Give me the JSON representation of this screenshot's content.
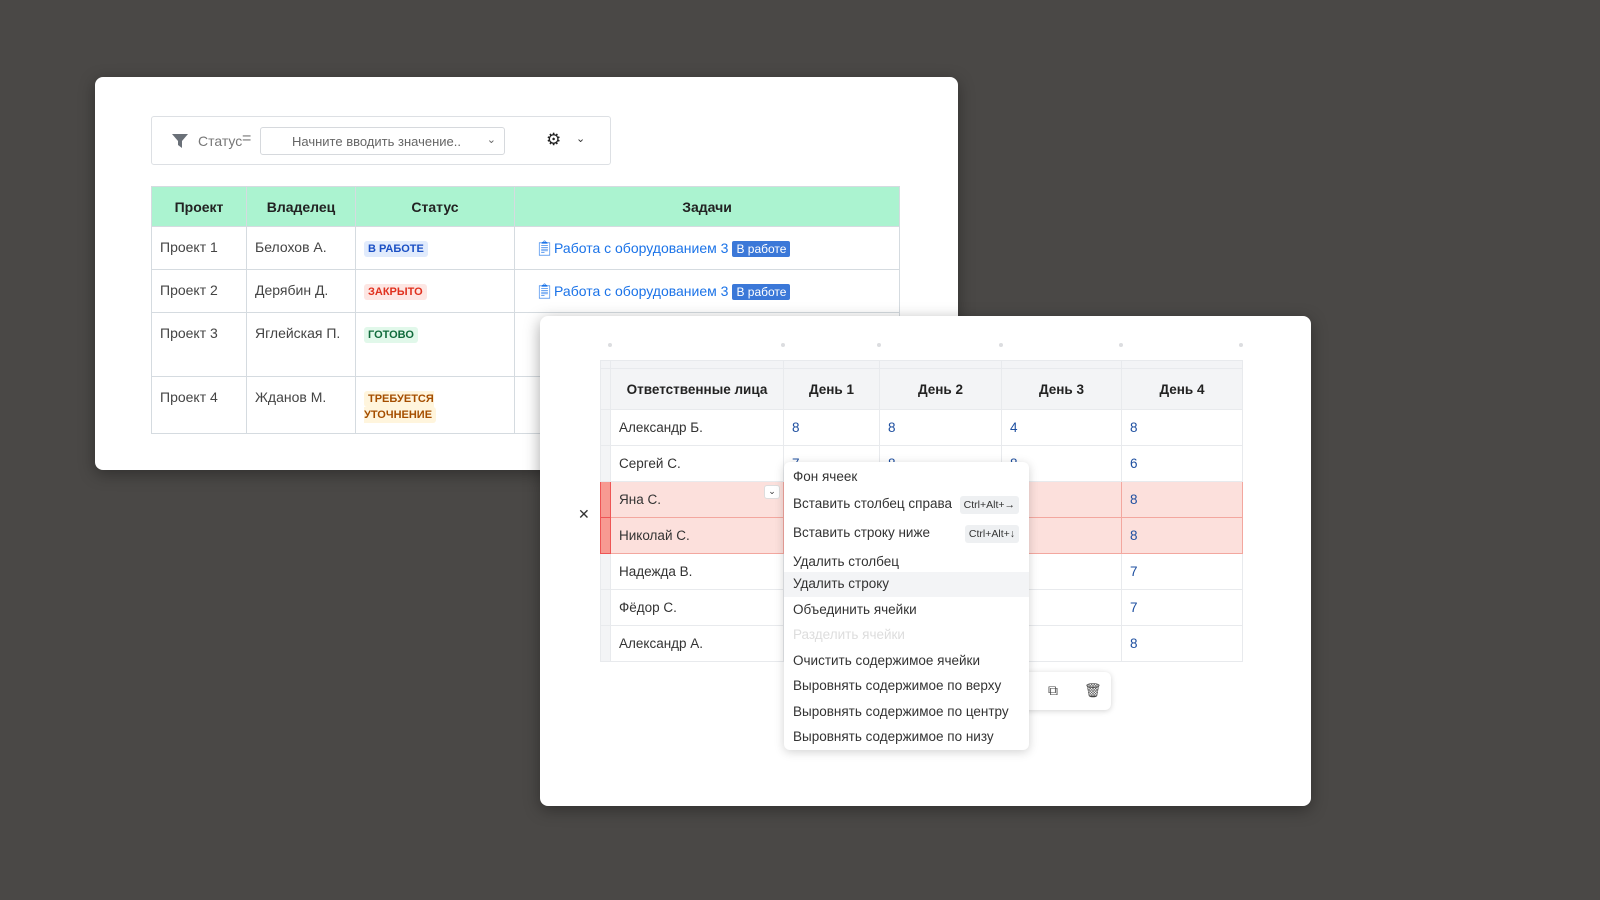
{
  "filter": {
    "field_label": "Статус",
    "operator": "=",
    "placeholder": "Начните вводить значение..",
    "filter_icon": "funnel",
    "settings_icon": "gear"
  },
  "projects_table": {
    "headers": [
      "Проект",
      "Владелец",
      "Статус",
      "Задачи"
    ],
    "rows": [
      {
        "project": "Проект 1",
        "owner": "Белохов А.",
        "status": "В РАБОТЕ",
        "status_color": "#1a4fc4",
        "status_bg": "#e1ebfc",
        "task": "Работа с оборудованием 3",
        "task_badge": "В работе"
      },
      {
        "project": "Проект 2",
        "owner": "Дерябин Д.",
        "status": "ЗАКРЫТО",
        "status_color": "#e0301e",
        "status_bg": "#fde6e3",
        "task": "Работа с оборудованием 3",
        "task_badge": "В работе"
      },
      {
        "project": "Проект 3",
        "owner": "Яглейская П.",
        "status": "ГОТОВО",
        "status_color": "#116b3c",
        "status_bg": "#e1f8ea"
      },
      {
        "project": "Проект 4",
        "owner": "Жданов М.",
        "status": "ТРЕБУЕТСЯ УТОЧНЕНИЕ",
        "status_color": "#a54e00",
        "status_bg": "#fff5dd"
      }
    ]
  },
  "hours_table": {
    "headers": [
      "Ответственные лица",
      "День 1",
      "День 2",
      "День 3",
      "День 4"
    ],
    "rows": [
      {
        "name": "Александр Б.",
        "d": [
          "8",
          "8",
          "4",
          "8"
        ]
      },
      {
        "name": "Сергей С.",
        "d": [
          "7",
          "8",
          "8",
          "6"
        ]
      },
      {
        "name": "Яна С.",
        "d": [
          "",
          "",
          "",
          "8"
        ],
        "selected": true
      },
      {
        "name": "Николай С.",
        "d": [
          "",
          "",
          "",
          "8"
        ],
        "selected": true
      },
      {
        "name": "Надежда В.",
        "d": [
          "",
          "",
          "",
          "7"
        ]
      },
      {
        "name": "Фёдор С.",
        "d": [
          "",
          "",
          "",
          "7"
        ]
      },
      {
        "name": "Александр А.",
        "d": [
          "",
          "",
          "",
          "8"
        ]
      }
    ]
  },
  "context_menu": {
    "items": [
      {
        "label": "Фон ячеек"
      },
      {
        "label": "Вставить столбец справа",
        "shortcut": "Ctrl+Alt+→"
      },
      {
        "label": "Вставить строку ниже",
        "shortcut": "Ctrl+Alt+↓"
      },
      {
        "label": "Удалить столбец"
      },
      {
        "label": "Удалить строку",
        "hovered": true
      },
      {
        "label": "Объединить ячейки"
      },
      {
        "label": "Разделить ячейки",
        "disabled": true
      },
      {
        "label": "Очистить содержимое ячейки"
      },
      {
        "label": "Выровнять содержимое по верху"
      },
      {
        "label": "Выровнять содержимое по центру"
      },
      {
        "label": "Выровнять содержимое по низу"
      }
    ]
  }
}
